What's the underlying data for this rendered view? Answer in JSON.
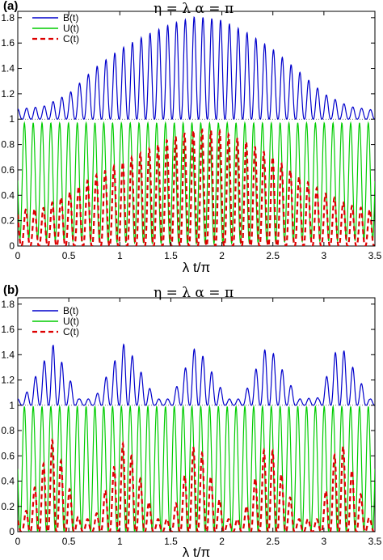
{
  "chart_data": [
    {
      "type": "line",
      "panel_label": "(a)",
      "title": "η = λ   α = π",
      "xlabel": "λ t/π",
      "ylabel": "",
      "xlim": [
        0,
        3.5
      ],
      "ylim": [
        0,
        1.85
      ],
      "xticks": [
        0,
        0.5,
        1,
        1.5,
        2,
        2.5,
        3,
        3.5
      ],
      "xtick_labels": [
        "0",
        "0.5",
        "1",
        "1.5",
        "2",
        "2.5",
        "3",
        "3.5"
      ],
      "yticks": [
        0,
        0.2,
        0.4,
        0.6,
        0.8,
        1,
        1.2,
        1.4,
        1.6,
        1.8
      ],
      "ytick_labels": [
        "0",
        "0.2",
        "0.4",
        "0.6",
        "0.8",
        "1",
        "1.2",
        "1.4",
        "1.6",
        "1.8"
      ],
      "legend_position": "top-left",
      "grid": false,
      "series": [
        {
          "name": "B(t)",
          "color": "#0000cc",
          "style": "solid",
          "x": [
            0,
            0.25,
            0.5,
            0.75,
            1,
            1.25,
            1.5,
            1.75,
            2,
            2.25,
            2.5,
            2.75,
            3,
            3.25,
            3.5
          ],
          "y_envelope_max": [
            1.08,
            1.1,
            1.2,
            1.4,
            1.55,
            1.66,
            1.75,
            1.81,
            1.78,
            1.68,
            1.55,
            1.38,
            1.2,
            1.1,
            1.07
          ],
          "y_min": 1.0
        },
        {
          "name": "U(t)",
          "color": "#00cc00",
          "style": "solid",
          "x": [
            0,
            0.5,
            1,
            1.5,
            2,
            2.5,
            3,
            3.5
          ],
          "y_envelope_max": [
            0.97,
            0.97,
            0.97,
            0.97,
            0.97,
            0.97,
            0.97,
            0.97
          ],
          "y_envelope_min": [
            0.06,
            0.04,
            0.03,
            0.02,
            0.02,
            0.03,
            0.04,
            0.05
          ]
        },
        {
          "name": "C(t)",
          "color": "#dd0000",
          "style": "dashed",
          "x": [
            0,
            0.25,
            0.5,
            0.75,
            1,
            1.25,
            1.5,
            1.75,
            2,
            2.25,
            2.5,
            2.75,
            3,
            3.25,
            3.5
          ],
          "y_envelope_max": [
            0.28,
            0.3,
            0.42,
            0.55,
            0.65,
            0.75,
            0.85,
            0.92,
            0.9,
            0.82,
            0.7,
            0.55,
            0.42,
            0.32,
            0.28
          ],
          "y_min": 0.0
        }
      ]
    },
    {
      "type": "line",
      "panel_label": "(b)",
      "title": "η = λ   α = π",
      "xlabel": "λ t/π",
      "ylabel": "",
      "xlim": [
        0,
        3.5
      ],
      "ylim": [
        0,
        1.85
      ],
      "xticks": [
        0,
        0.5,
        1,
        1.5,
        2,
        2.5,
        3,
        3.5
      ],
      "xtick_labels": [
        "0",
        "0.5",
        "1",
        "1.5",
        "2",
        "2.5",
        "3",
        "3.5"
      ],
      "yticks": [
        0,
        0.2,
        0.4,
        0.6,
        0.8,
        1,
        1.2,
        1.4,
        1.6,
        1.8
      ],
      "ytick_labels": [
        "0",
        "0.2",
        "0.4",
        "0.6",
        "0.8",
        "1",
        "1.2",
        "1.4",
        "1.6",
        "1.8"
      ],
      "legend_position": "top-right",
      "grid": false,
      "series": [
        {
          "name": "B(t)",
          "color": "#0000cc",
          "style": "solid",
          "x": [
            0.05,
            0.35,
            0.6,
            0.75,
            1.05,
            1.35,
            1.5,
            1.75,
            2.05,
            2.2,
            2.45,
            2.75,
            2.95,
            3.15,
            3.45
          ],
          "y_envelope_max": [
            1.05,
            1.48,
            1.05,
            1.05,
            1.5,
            1.05,
            1.05,
            1.48,
            1.05,
            1.05,
            1.49,
            1.05,
            1.06,
            1.5,
            1.05
          ],
          "y_min": 1.0
        },
        {
          "name": "U(t)",
          "color": "#00cc00",
          "style": "solid",
          "x": [
            0,
            0.5,
            1,
            1.5,
            2,
            2.5,
            3,
            3.5
          ],
          "y_envelope_max": [
            0.99,
            0.99,
            0.99,
            0.99,
            0.99,
            0.99,
            0.99,
            0.99
          ],
          "y_envelope_min": [
            0.0,
            0.0,
            0.0,
            0.0,
            0.0,
            0.0,
            0.0,
            0.0
          ]
        },
        {
          "name": "C(t)",
          "color": "#dd0000",
          "style": "dashed",
          "x": [
            0.05,
            0.35,
            0.6,
            0.75,
            1.05,
            1.35,
            1.5,
            1.75,
            2.05,
            2.2,
            2.45,
            2.75,
            2.95,
            3.15,
            3.45
          ],
          "y_envelope_max": [
            0.1,
            0.75,
            0.1,
            0.1,
            0.74,
            0.1,
            0.1,
            0.74,
            0.1,
            0.1,
            0.74,
            0.1,
            0.1,
            0.76,
            0.1
          ],
          "y_min": 0.0
        }
      ]
    }
  ]
}
